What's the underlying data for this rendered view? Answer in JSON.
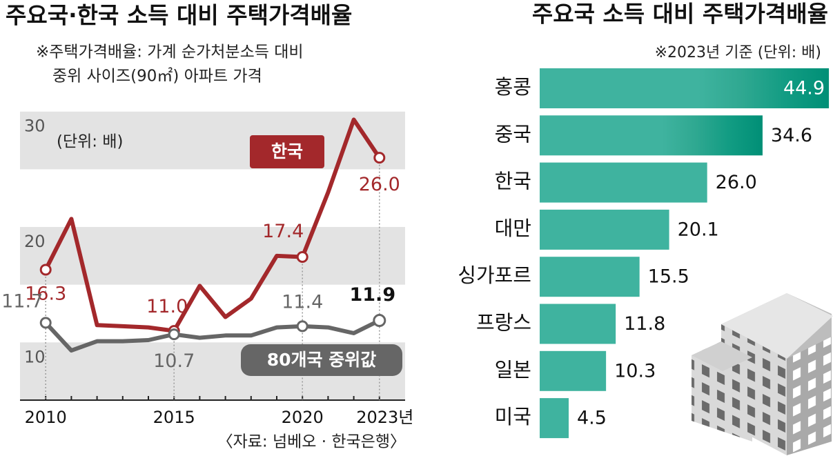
{
  "chart_data": [
    {
      "type": "line",
      "title": "주요국·한국 소득 대비 주택가격배율",
      "note": [
        "※주택가격배율: 가계 순가처분소득 대비",
        "중위 사이즈(90㎡) 아파트 가격"
      ],
      "unit": "(단위: 배)",
      "source": "〈자료: 넘베오 · 한국은행〉",
      "x": [
        2010,
        2011,
        2012,
        2013,
        2014,
        2015,
        2016,
        2017,
        2018,
        2019,
        2020,
        2021,
        2022,
        2023
      ],
      "xlim": [
        2009,
        2024
      ],
      "xticks": [
        2010,
        2015,
        2020,
        {
          "value": 2023,
          "label": "2023년"
        }
      ],
      "ylim": [
        5,
        31
      ],
      "yticks": [
        10,
        20,
        30
      ],
      "series": [
        {
          "name": "한국",
          "color": "#a3282b",
          "values": [
            16.3,
            20.7,
            11.5,
            11.4,
            11.3,
            11.0,
            14.9,
            12.2,
            13.8,
            17.5,
            17.4,
            23.0,
            29.3,
            26.0
          ],
          "value_labels": [
            "16.3",
            null,
            null,
            null,
            null,
            "11.0",
            null,
            null,
            null,
            null,
            "17.4",
            null,
            null,
            "26.0"
          ]
        },
        {
          "name": "80개국 중위값",
          "color": "#666666",
          "values": [
            11.7,
            9.3,
            10.1,
            10.1,
            10.2,
            10.7,
            10.4,
            10.6,
            10.6,
            11.3,
            11.4,
            11.3,
            10.8,
            11.9
          ],
          "value_labels": [
            "11.7",
            null,
            null,
            null,
            null,
            "10.7",
            null,
            null,
            null,
            null,
            "11.4",
            null,
            null,
            "11.9"
          ]
        }
      ]
    },
    {
      "type": "bar",
      "orientation": "horizontal",
      "title": "주요국 소득 대비 주택가격배율",
      "note": "※2023년 기준 (단위: 배)",
      "categories": [
        "홍콩",
        "중국",
        "한국",
        "대만",
        "싱가포르",
        "프랑스",
        "일본",
        "미국"
      ],
      "values": [
        44.9,
        34.6,
        26.0,
        20.1,
        15.5,
        11.8,
        10.3,
        4.5
      ],
      "value_labels": [
        "44.9",
        "34.6",
        "26.0",
        "20.1",
        "15.5",
        "11.8",
        "10.3",
        "4.5"
      ],
      "color": "#3fb39f",
      "xlim": [
        0,
        45
      ]
    }
  ]
}
